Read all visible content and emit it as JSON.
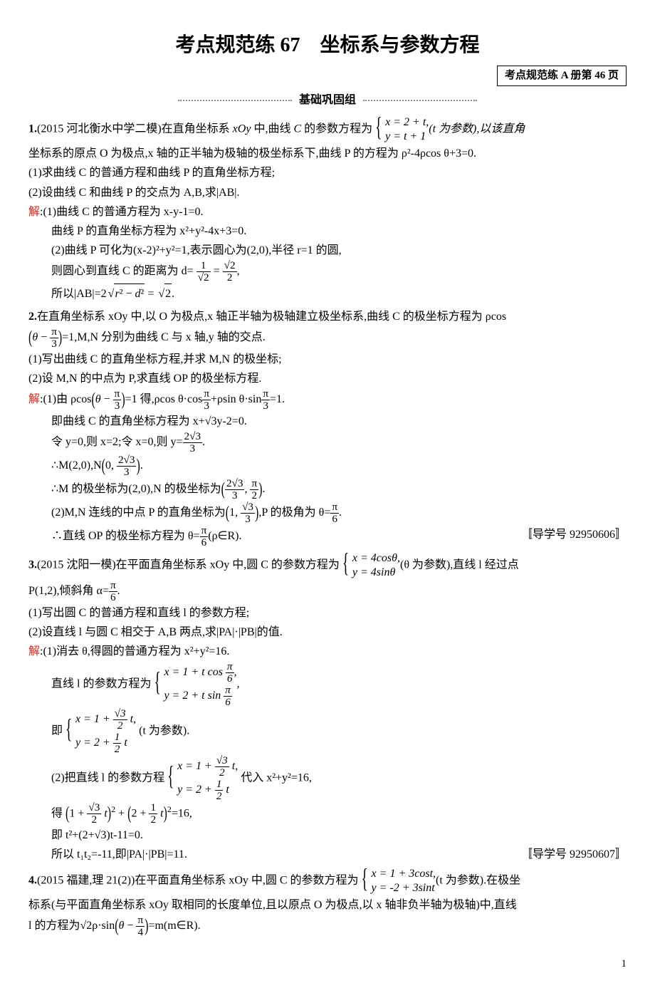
{
  "title_main": "考点规范练 67　坐标系与参数方程",
  "title_box": "考点规范练 A 册第 46 页",
  "section_label": "基础巩固组",
  "p1": {
    "intro_a": "(2015 河北衡水中学二模)在直角坐标系 ",
    "xoy": "xOy",
    "intro_b": " 中,曲线 ",
    "C": "C",
    "intro_c": " 的参数方程为",
    "sys_row1": "x = 2 + t,",
    "sys_row2": "y = t + 1",
    "after_sys": "(t 为参数),以该直角",
    "line2": "坐标系的原点 O 为极点,x 轴的正半轴为极轴的极坐标系下,曲线 P 的方程为 ρ²-4ρcos θ+3=0.",
    "q1": "(1)求曲线 C 的普通方程和曲线 P 的直角坐标方程;",
    "q2": "(2)设曲线 C 和曲线 P 的交点为 A,B,求|AB|.",
    "sol_label": "解",
    "s1": ":(1)曲线 C 的普通方程为 x-y-1=0.",
    "s2": "曲线 P 的直角坐标方程为 x²+y²-4x+3=0.",
    "s3a": "(2)曲线 P 可化为(x-2)²+y²=1,表示圆心为(2,0),半径 r=1 的圆,",
    "s4a": "则圆心到直线 C 的距离为 d=",
    "s5a": "所以|AB|=2",
    "s5b": " = ",
    "s5c": "."
  },
  "p2": {
    "intro_a": "在直角坐标系 xOy 中,以 O 为极点,x 轴正半轴为极轴建立极坐标系,曲线 C 的极坐标方程为 ρcos",
    "theta_arg": "θ − π/3",
    "intro_b": "=1,M,N 分别为曲线 C 与 x 轴,y 轴的交点.",
    "q1": "(1)写出曲线 C 的直角坐标方程,并求 M,N 的极坐标;",
    "q2": "(2)设 M,N 的中点为 P,求直线 OP 的极坐标方程.",
    "sol_label": "解",
    "s1a": ":(1)由 ρcos",
    "s1b": "=1 得,ρcos θ·cos",
    "s1c": "+ρsin θ·sin",
    "s1d": "=1.",
    "s2": "即曲线 C 的直角坐标方程为 x+√3y-2=0.",
    "s3a": "令 y=0,则 x=2;令 x=0,则 y=",
    "s4a": "∴M(2,0),N",
    "s5a": "∴M 的极坐标为(2,0),N 的极坐标为",
    "s6a": "(2)M,N 连线的中点 P 的直角坐标为",
    "s6b": ",P 的极角为 θ=",
    "s7a": "∴直线 OP 的极坐标方程为 θ=",
    "s7b": "(ρ∈R).",
    "ref": "〚导学号 92950606〛"
  },
  "p3": {
    "intro_a": "(2015 沈阳一模)在平面直角坐标系 xOy 中,圆 C 的参数方程为",
    "sys1": "x = 4cosθ,",
    "sys2": "y = 4sinθ",
    "after": "(θ 为参数),直线 l 经过点",
    "line2a": "P(1,2),倾斜角 α=",
    "q1": "(1)写出圆 C 的普通方程和直线 l 的参数方程;",
    "q2": "(2)设直线 l 与圆 C 相交于 A,B 两点,求|PA|·|PB|的值.",
    "sol_label": "解",
    "s1": ":(1)消去 θ,得圆的普通方程为 x²+y²=16.",
    "s2a": "直线 l 的参数方程为",
    "s2_r1": "x = 1 + t cos π/6,",
    "s2_r2": "y = 2 + t sin π/6",
    "s3a": "即",
    "s3_r1": "x = 1 + (√3/2) t,",
    "s3_r2": "y = 2 + (1/2) t",
    "s3b": "(t 为参数).",
    "s4a": "(2)把直线 l 的参数方程",
    "s4b": "代入 x²+y²=16,",
    "s5a": "得",
    "s5b": "=16,",
    "s6": "即 t²+(2+√3)t-11=0.",
    "s7": "所以 t₁t₂=-11,即|PA|·|PB|=11.",
    "ref": "〚导学号 92950607〛"
  },
  "p4": {
    "intro_a": "(2015 福建,理 21(2))在平面直角坐标系 xOy 中,圆 C 的参数方程为",
    "sys1": "x = 1 + 3cost,",
    "sys2": "y = -2 + 3sint",
    "after": "(t 为参数).在极坐",
    "line2": "标系(与平面直角坐标系 xOy 取相同的长度单位,且以原点 O 为极点,以 x 轴非负半轴为极轴)中,直线",
    "line3a": "l 的方程为√2ρ·sin",
    "line3b": "=m(m∈R)."
  },
  "page_number": "1"
}
